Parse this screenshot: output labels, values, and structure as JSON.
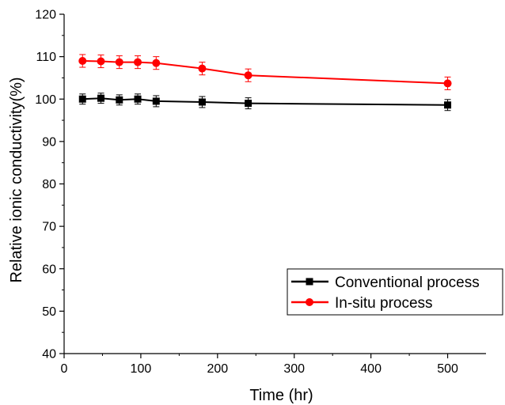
{
  "chart_data": {
    "type": "line",
    "title": "",
    "xlabel": "Time (hr)",
    "ylabel": "Relative ionic conductivity(%)",
    "xlim": [
      0,
      550
    ],
    "ylim": [
      40,
      120
    ],
    "x_ticks": [
      "0",
      "100",
      "200",
      "300",
      "400",
      "500"
    ],
    "y_ticks": [
      "40",
      "50",
      "60",
      "70",
      "80",
      "90",
      "100",
      "110",
      "120"
    ],
    "grid": false,
    "legend_position": "bottom-right",
    "series": [
      {
        "name": "Conventional process",
        "color": "#000000",
        "marker": "square",
        "x": [
          24,
          48,
          72,
          96,
          120,
          180,
          240,
          500
        ],
        "y": [
          100.0,
          100.2,
          99.8,
          100.0,
          99.5,
          99.3,
          99.0,
          98.6
        ],
        "error": [
          1.2,
          1.2,
          1.2,
          1.2,
          1.3,
          1.3,
          1.3,
          1.3
        ]
      },
      {
        "name": "In-situ process",
        "color": "#ff0000",
        "marker": "circle",
        "x": [
          24,
          48,
          72,
          96,
          120,
          180,
          240,
          500
        ],
        "y": [
          109.0,
          108.9,
          108.7,
          108.7,
          108.5,
          107.2,
          105.6,
          103.7
        ],
        "error": [
          1.5,
          1.5,
          1.5,
          1.5,
          1.5,
          1.5,
          1.5,
          1.5
        ]
      }
    ]
  }
}
